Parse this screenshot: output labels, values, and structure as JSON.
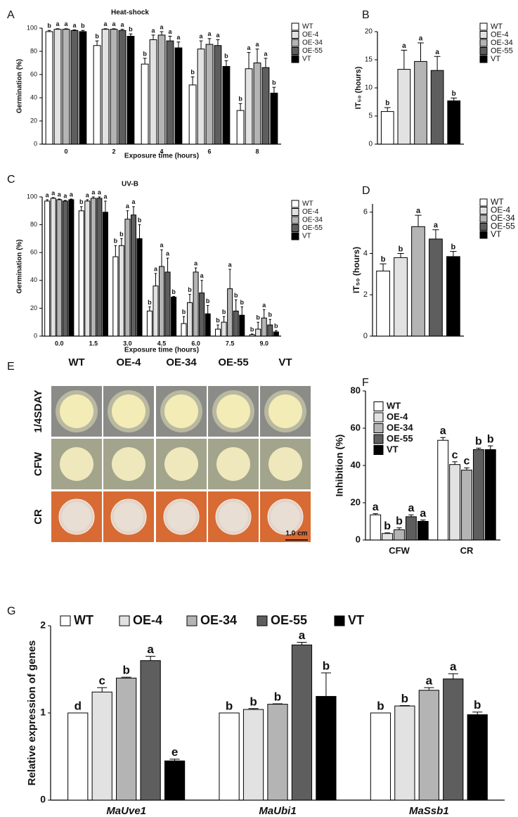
{
  "chart_data": [
    {
      "type": "bar",
      "panel": "A",
      "title": "Heat-shock",
      "y_label": "Germination (%)",
      "x_label": "Exposure time (hours)",
      "categories": [
        "0",
        "2",
        "4",
        "6",
        "8"
      ],
      "ylim": [
        0,
        100
      ],
      "yticks": [
        0,
        20,
        40,
        60,
        80,
        100
      ],
      "series": [
        {
          "name": "WT",
          "color": "#ffffff",
          "values": [
            97,
            85,
            69,
            51,
            29
          ],
          "errors": [
            1,
            4,
            5,
            7,
            6
          ],
          "letters": [
            "b",
            "b",
            "b",
            "b",
            "b"
          ]
        },
        {
          "name": "OE-4",
          "color": "#e2e2e2",
          "values": [
            99,
            99,
            90,
            82,
            65
          ],
          "errors": [
            0.5,
            0.5,
            4,
            7,
            14
          ],
          "letters": [
            "a",
            "a",
            "a",
            "a",
            "a"
          ]
        },
        {
          "name": "OE-34",
          "color": "#b4b4b4",
          "values": [
            99,
            99,
            94,
            86,
            70
          ],
          "errors": [
            0.5,
            0.5,
            3,
            5,
            12
          ],
          "letters": [
            "a",
            "a",
            "a",
            "a",
            "a"
          ]
        },
        {
          "name": "OE-55",
          "color": "#5e5e5e",
          "values": [
            98,
            98,
            89,
            85,
            66
          ],
          "errors": [
            0.5,
            1,
            4,
            5,
            8
          ],
          "letters": [
            "a",
            "a",
            "a",
            "a",
            "a"
          ]
        },
        {
          "name": "VT",
          "color": "#000000",
          "values": [
            97,
            93,
            83,
            67,
            44
          ],
          "errors": [
            1,
            2,
            5,
            5,
            5
          ],
          "letters": [
            "b",
            "b",
            "a",
            "b",
            "b"
          ]
        }
      ]
    },
    {
      "type": "bar",
      "panel": "B",
      "y_label": "IT₅₀ (hours)",
      "ylim": [
        0,
        20
      ],
      "yticks": [
        0,
        5,
        10,
        15,
        20
      ],
      "series": [
        {
          "name": "WT",
          "color": "#ffffff",
          "values": [
            5.8
          ],
          "errors": [
            0.7
          ],
          "letters": [
            "b"
          ]
        },
        {
          "name": "OE-4",
          "color": "#e2e2e2",
          "values": [
            13.3
          ],
          "errors": [
            3.4
          ],
          "letters": [
            "a"
          ]
        },
        {
          "name": "OE-34",
          "color": "#b4b4b4",
          "values": [
            14.7
          ],
          "errors": [
            3.3
          ],
          "letters": [
            "a"
          ]
        },
        {
          "name": "OE-55",
          "color": "#5e5e5e",
          "values": [
            13.1
          ],
          "errors": [
            2.5
          ],
          "letters": [
            "a"
          ]
        },
        {
          "name": "VT",
          "color": "#000000",
          "values": [
            7.7
          ],
          "errors": [
            0.5
          ],
          "letters": [
            "b"
          ]
        }
      ]
    },
    {
      "type": "bar",
      "panel": "C",
      "title": "UV-B",
      "y_label": "Germination (%)",
      "x_label": "Exposure time (hours)",
      "categories": [
        "0.0",
        "1.5",
        "3.0",
        "4.5",
        "6.0",
        "7.5",
        "9.0"
      ],
      "ylim": [
        0,
        100
      ],
      "yticks": [
        0,
        20,
        40,
        60,
        80,
        100
      ],
      "series": [
        {
          "name": "WT",
          "color": "#ffffff",
          "values": [
            97,
            90,
            57,
            18,
            9,
            5,
            1
          ],
          "errors": [
            1,
            3,
            8,
            3,
            5,
            3,
            0.5
          ],
          "letters": [
            "a",
            "b",
            "b",
            "b",
            "b",
            "b",
            "b"
          ]
        },
        {
          "name": "OE-4",
          "color": "#e2e2e2",
          "values": [
            99,
            97,
            65,
            36,
            24,
            10,
            5
          ],
          "errors": [
            0.5,
            1,
            5,
            9,
            6,
            4,
            5
          ],
          "letters": [
            "a",
            "a",
            "b",
            "a",
            "b",
            "b",
            "b"
          ]
        },
        {
          "name": "OE-34",
          "color": "#b4b4b4",
          "values": [
            98,
            99,
            84,
            50,
            46,
            34,
            13
          ],
          "errors": [
            0.5,
            1,
            6,
            12,
            3,
            14,
            6
          ],
          "letters": [
            "a",
            "a",
            "a",
            "a",
            "a",
            "a",
            "a"
          ]
        },
        {
          "name": "OE-55",
          "color": "#5e5e5e",
          "values": [
            97,
            99,
            87,
            46,
            31,
            18,
            8
          ],
          "errors": [
            0.5,
            1,
            6,
            10,
            9,
            8,
            4
          ],
          "letters": [
            "a",
            "a",
            "a",
            "a",
            "a",
            "b",
            "b"
          ]
        },
        {
          "name": "VT",
          "color": "#000000",
          "values": [
            98,
            89,
            70,
            28,
            16,
            15,
            3
          ],
          "errors": [
            0.5,
            8,
            10,
            0.5,
            6,
            6,
            1
          ],
          "letters": [
            "a",
            "a",
            "b",
            "b",
            "b",
            "b",
            "b"
          ]
        }
      ]
    },
    {
      "type": "bar",
      "panel": "D",
      "y_label": "IT₅₀ (hours)",
      "ylim": [
        0,
        6.4
      ],
      "yticks": [
        0,
        2,
        4,
        6
      ],
      "series": [
        {
          "name": "WT",
          "color": "#ffffff",
          "values": [
            3.15
          ],
          "errors": [
            0.35
          ],
          "letters": [
            "b"
          ]
        },
        {
          "name": "OE-4",
          "color": "#e2e2e2",
          "values": [
            3.8
          ],
          "errors": [
            0.2
          ],
          "letters": [
            "b"
          ]
        },
        {
          "name": "OE-34",
          "color": "#b4b4b4",
          "values": [
            5.3
          ],
          "errors": [
            0.55
          ],
          "letters": [
            "a"
          ]
        },
        {
          "name": "OE-55",
          "color": "#5e5e5e",
          "values": [
            4.7
          ],
          "errors": [
            0.45
          ],
          "letters": [
            "a"
          ]
        },
        {
          "name": "VT",
          "color": "#000000",
          "values": [
            3.85
          ],
          "errors": [
            0.25
          ],
          "letters": [
            "b"
          ]
        }
      ]
    },
    {
      "type": "photo-grid",
      "panel": "E",
      "columns": [
        "WT",
        "OE-4",
        "OE-34",
        "OE-55",
        "VT"
      ],
      "rows": [
        "1/4SDAY",
        "CFW",
        "CR"
      ],
      "scale_label": "1.0 cm"
    },
    {
      "type": "bar",
      "panel": "F",
      "y_label": "Inhibition (%)",
      "categories": [
        "CFW",
        "CR"
      ],
      "ylim": [
        0,
        80
      ],
      "yticks": [
        0,
        20,
        40,
        60,
        80
      ],
      "series": [
        {
          "name": "WT",
          "color": "#ffffff",
          "values": [
            13.5,
            53.5
          ],
          "errors": [
            0.6,
            1.5
          ],
          "letters": [
            "a",
            "a"
          ]
        },
        {
          "name": "OE-4",
          "color": "#e2e2e2",
          "values": [
            3.5,
            40.5
          ],
          "errors": [
            0.3,
            1.5
          ],
          "letters": [
            "b",
            "c"
          ]
        },
        {
          "name": "OE-34",
          "color": "#b4b4b4",
          "values": [
            5.5,
            37.5
          ],
          "errors": [
            1,
            1.2
          ],
          "letters": [
            "b",
            "c"
          ]
        },
        {
          "name": "OE-55",
          "color": "#5e5e5e",
          "values": [
            12.5,
            48.5
          ],
          "errors": [
            1,
            0.8
          ],
          "letters": [
            "a",
            "b"
          ]
        },
        {
          "name": "VT",
          "color": "#000000",
          "values": [
            10,
            48.5
          ],
          "errors": [
            0.7,
            2
          ],
          "letters": [
            "a",
            "b"
          ]
        }
      ]
    },
    {
      "type": "bar",
      "panel": "G",
      "y_label": "Relative expression of genes",
      "categories": [
        "MaUve1",
        "MaUbi1",
        "MaSsb1"
      ],
      "ylim": [
        0,
        2
      ],
      "yticks": [
        0,
        1,
        2
      ],
      "series": [
        {
          "name": "WT",
          "color": "#ffffff",
          "values": [
            1,
            1,
            1
          ],
          "errors": [
            0,
            0,
            0
          ],
          "letters": [
            "d",
            "b",
            "b"
          ]
        },
        {
          "name": "OE-4",
          "color": "#e2e2e2",
          "values": [
            1.24,
            1.04,
            1.08
          ],
          "errors": [
            0.05,
            0.01,
            0.005
          ],
          "letters": [
            "c",
            "b",
            "b"
          ]
        },
        {
          "name": "OE-34",
          "color": "#b4b4b4",
          "values": [
            1.4,
            1.1,
            1.26
          ],
          "errors": [
            0.01,
            0.005,
            0.03
          ],
          "letters": [
            "b",
            "b",
            "a"
          ]
        },
        {
          "name": "OE-55",
          "color": "#5e5e5e",
          "values": [
            1.6,
            1.78,
            1.39
          ],
          "errors": [
            0.05,
            0.03,
            0.06
          ],
          "letters": [
            "a",
            "a",
            "a"
          ]
        },
        {
          "name": "VT",
          "color": "#000000",
          "values": [
            0.45,
            1.19,
            0.98
          ],
          "errors": [
            0.02,
            0.27,
            0.03
          ],
          "letters": [
            "e",
            "b",
            "b"
          ]
        }
      ]
    }
  ]
}
